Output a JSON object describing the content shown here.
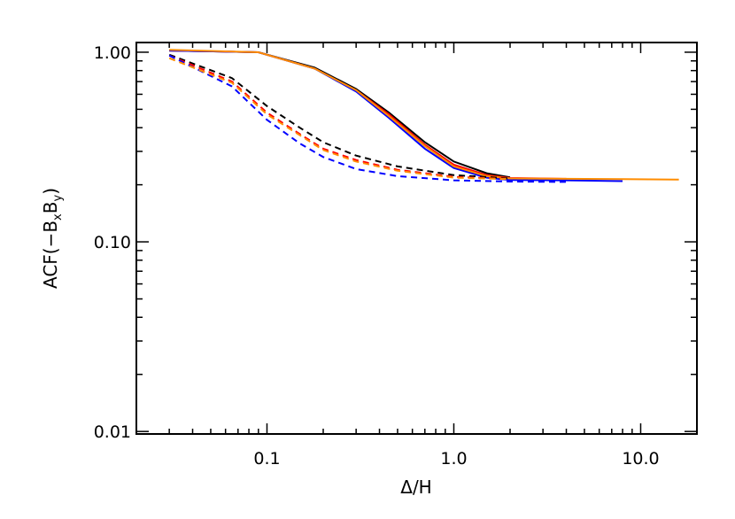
{
  "chart_data": {
    "type": "line",
    "title": "",
    "xlabel": "Δ/H",
    "ylabel": "ACF(−BₓBᵧ)",
    "ylabel_parts": {
      "prefix": "ACF(−B",
      "sub1": "x",
      "mid": "B",
      "sub2": "y",
      "suffix": ")"
    },
    "xscale": "log",
    "yscale": "log",
    "xlim": [
      0.02,
      20
    ],
    "ylim": [
      0.0097,
      1.125
    ],
    "xticks": [
      {
        "value": 0.1,
        "label": "0.1"
      },
      {
        "value": 1,
        "label": "1.0"
      },
      {
        "value": 10,
        "label": "10.0"
      }
    ],
    "yticks": [
      {
        "value": 0.01,
        "label": "0.01"
      },
      {
        "value": 0.1,
        "label": "0.10"
      },
      {
        "value": 1,
        "label": "1.00"
      }
    ],
    "grid": false,
    "legend": "none",
    "series": [
      {
        "color": "#000000",
        "style": "solid",
        "points": [
          [
            0.03,
            1.02
          ],
          [
            0.09,
            1.0
          ],
          [
            0.18,
            0.83
          ],
          [
            0.3,
            0.64
          ],
          [
            0.45,
            0.48
          ],
          [
            0.7,
            0.335
          ],
          [
            1.0,
            0.265
          ],
          [
            1.5,
            0.23
          ],
          [
            2.0,
            0.219
          ]
        ]
      },
      {
        "color": "#ff0000",
        "style": "solid",
        "points": [
          [
            0.03,
            1.02
          ],
          [
            0.09,
            1.0
          ],
          [
            0.18,
            0.82
          ],
          [
            0.3,
            0.63
          ],
          [
            0.45,
            0.47
          ],
          [
            0.7,
            0.325
          ],
          [
            1.0,
            0.255
          ],
          [
            1.5,
            0.225
          ],
          [
            2.0,
            0.217
          ],
          [
            4.0,
            0.215
          ]
        ]
      },
      {
        "color": "#0000ff",
        "style": "solid",
        "points": [
          [
            0.03,
            1.02
          ],
          [
            0.09,
            1.0
          ],
          [
            0.18,
            0.82
          ],
          [
            0.3,
            0.62
          ],
          [
            0.45,
            0.45
          ],
          [
            0.7,
            0.31
          ],
          [
            1.0,
            0.245
          ],
          [
            1.5,
            0.218
          ],
          [
            2.0,
            0.212
          ],
          [
            4.0,
            0.211
          ],
          [
            8.0,
            0.209
          ]
        ]
      },
      {
        "color": "#ff8c00",
        "style": "solid",
        "points": [
          [
            0.03,
            1.03
          ],
          [
            0.09,
            1.0
          ],
          [
            0.18,
            0.82
          ],
          [
            0.3,
            0.63
          ],
          [
            0.45,
            0.46
          ],
          [
            0.7,
            0.32
          ],
          [
            1.0,
            0.25
          ],
          [
            1.5,
            0.222
          ],
          [
            2.0,
            0.216
          ],
          [
            4.0,
            0.215
          ],
          [
            8.0,
            0.214
          ],
          [
            16.0,
            0.213
          ]
        ]
      },
      {
        "color": "#000000",
        "style": "dashed",
        "points": [
          [
            0.03,
            0.97
          ],
          [
            0.065,
            0.73
          ],
          [
            0.1,
            0.52
          ],
          [
            0.15,
            0.4
          ],
          [
            0.2,
            0.335
          ],
          [
            0.3,
            0.285
          ],
          [
            0.5,
            0.25
          ],
          [
            1.0,
            0.225
          ],
          [
            2.0,
            0.216
          ]
        ]
      },
      {
        "color": "#ff0000",
        "style": "dashed",
        "points": [
          [
            0.03,
            0.96
          ],
          [
            0.065,
            0.7
          ],
          [
            0.1,
            0.48
          ],
          [
            0.15,
            0.37
          ],
          [
            0.2,
            0.31
          ],
          [
            0.3,
            0.27
          ],
          [
            0.5,
            0.24
          ],
          [
            1.0,
            0.22
          ],
          [
            2.0,
            0.215
          ]
        ]
      },
      {
        "color": "#0000ff",
        "style": "dashed",
        "points": [
          [
            0.03,
            0.96
          ],
          [
            0.065,
            0.66
          ],
          [
            0.1,
            0.44
          ],
          [
            0.15,
            0.33
          ],
          [
            0.2,
            0.28
          ],
          [
            0.3,
            0.242
          ],
          [
            0.5,
            0.222
          ],
          [
            1.0,
            0.211
          ],
          [
            2.0,
            0.208
          ],
          [
            4.0,
            0.207
          ]
        ]
      },
      {
        "color": "#ff8c00",
        "style": "dashed",
        "points": [
          [
            0.03,
            0.93
          ],
          [
            0.065,
            0.69
          ],
          [
            0.1,
            0.47
          ],
          [
            0.15,
            0.365
          ],
          [
            0.2,
            0.305
          ],
          [
            0.3,
            0.265
          ],
          [
            0.5,
            0.237
          ],
          [
            1.0,
            0.218
          ],
          [
            2.0,
            0.214
          ]
        ]
      }
    ]
  }
}
